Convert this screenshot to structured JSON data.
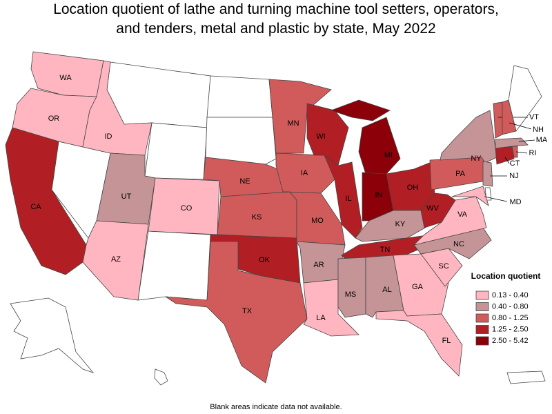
{
  "title": [
    "Location quotient of lathe and turning machine tool setters, operators,",
    "and tenders, metal and plastic by state, May 2022"
  ],
  "footnote": "Blank areas indicate data not available.",
  "legend": {
    "title": "Location quotient",
    "items": [
      {
        "label": "0.13 - 0.40",
        "color": "#ffb6c1"
      },
      {
        "label": "0.40 - 0.80",
        "color": "#c49497"
      },
      {
        "label": "0.80 - 1.25",
        "color": "#d15b5b"
      },
      {
        "label": "1.25 - 2.50",
        "color": "#b11f24"
      },
      {
        "label": "2.50 - 5.42",
        "color": "#8b0009"
      }
    ]
  },
  "states": [
    {
      "label": "WA",
      "color": "#ffb6c1"
    },
    {
      "label": "OR",
      "color": "#ffb6c1"
    },
    {
      "label": "CA",
      "color": "#b11f24"
    },
    {
      "label": "ID",
      "color": "#ffb6c1"
    },
    {
      "label": "UT",
      "color": "#c49497"
    },
    {
      "label": "AZ",
      "color": "#ffb6c1"
    },
    {
      "label": "CO",
      "color": "#ffb6c1"
    },
    {
      "label": "NE",
      "color": "#d15b5b"
    },
    {
      "label": "KS",
      "color": "#d15b5b"
    },
    {
      "label": "OK",
      "color": "#b11f24"
    },
    {
      "label": "TX",
      "color": "#d15b5b"
    },
    {
      "label": "MN",
      "color": "#d15b5b"
    },
    {
      "label": "IA",
      "color": "#d15b5b"
    },
    {
      "label": "MO",
      "color": "#d15b5b"
    },
    {
      "label": "AR",
      "color": "#c49497"
    },
    {
      "label": "LA",
      "color": "#ffb6c1"
    },
    {
      "label": "WI",
      "color": "#b11f24"
    },
    {
      "label": "IL",
      "color": "#b11f24"
    },
    {
      "label": "MI",
      "color": "#8b0009"
    },
    {
      "label": "IN",
      "color": "#8b0009"
    },
    {
      "label": "OH",
      "color": "#b11f24"
    },
    {
      "label": "KY",
      "color": "#c49497"
    },
    {
      "label": "TN",
      "color": "#b11f24"
    },
    {
      "label": "MS",
      "color": "#c49497"
    },
    {
      "label": "AL",
      "color": "#c49497"
    },
    {
      "label": "GA",
      "color": "#ffb6c1"
    },
    {
      "label": "FL",
      "color": "#ffb6c1"
    },
    {
      "label": "SC",
      "color": "#ffb6c1"
    },
    {
      "label": "NC",
      "color": "#c49497"
    },
    {
      "label": "VA",
      "color": "#ffb6c1"
    },
    {
      "label": "WV",
      "color": "#b11f24"
    },
    {
      "label": "PA",
      "color": "#d15b5b"
    },
    {
      "label": "NY",
      "color": "#c49497"
    },
    {
      "label": "NJ",
      "color": "#c49497"
    },
    {
      "label": "MD",
      "color": "#ffb6c1"
    },
    {
      "label": "CT",
      "color": "#b11f24"
    },
    {
      "label": "RI",
      "color": "#d15b5b"
    },
    {
      "label": "MA",
      "color": "#c49497"
    },
    {
      "label": "VT",
      "color": "#d15b5b"
    },
    {
      "label": "NH",
      "color": "#d15b5b"
    }
  ]
}
